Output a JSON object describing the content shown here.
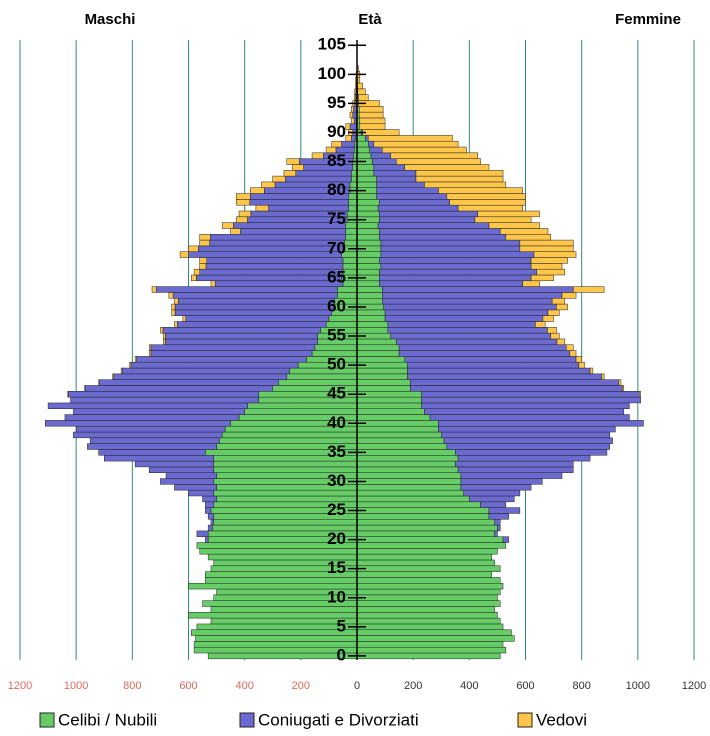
{
  "chart_data": {
    "type": "pyramid",
    "left_title": "Maschi",
    "center_title": "Età",
    "right_title": "Femmine",
    "ages": [
      0,
      1,
      2,
      3,
      4,
      5,
      6,
      7,
      8,
      9,
      10,
      11,
      12,
      13,
      14,
      15,
      16,
      17,
      18,
      19,
      20,
      21,
      22,
      23,
      24,
      25,
      26,
      27,
      28,
      29,
      30,
      31,
      32,
      33,
      34,
      35,
      36,
      37,
      38,
      39,
      40,
      41,
      42,
      43,
      44,
      45,
      46,
      47,
      48,
      49,
      50,
      51,
      52,
      53,
      54,
      55,
      56,
      57,
      58,
      59,
      60,
      61,
      62,
      63,
      64,
      65,
      66,
      67,
      68,
      69,
      70,
      71,
      72,
      73,
      74,
      75,
      76,
      77,
      78,
      79,
      80,
      81,
      82,
      83,
      84,
      85,
      86,
      87,
      88,
      89,
      90,
      91,
      92,
      93,
      94,
      95,
      96,
      97,
      98,
      99,
      100,
      101
    ],
    "xlim": [
      -1200,
      1200
    ],
    "xticks": [
      {
        "value": -1200,
        "label": "1200"
      },
      {
        "value": -1000,
        "label": "1000"
      },
      {
        "value": -800,
        "label": "800"
      },
      {
        "value": -600,
        "label": "600"
      },
      {
        "value": -400,
        "label": "400"
      },
      {
        "value": -200,
        "label": "200"
      },
      0,
      200,
      400,
      600,
      800,
      1000,
      1200
    ],
    "ylim": [
      -0.7,
      105.9
    ],
    "yticks": [
      0,
      5,
      10,
      15,
      20,
      25,
      30,
      35,
      40,
      45,
      50,
      55,
      60,
      65,
      70,
      75,
      80,
      85,
      90,
      95,
      100,
      105
    ],
    "grid": true,
    "grid_color": "#2e8b7a",
    "left_tick_color": "#e06a5a",
    "series": [
      {
        "name": "Celibi / Nubili",
        "color": "#66cc66",
        "male": [
          -530,
          -580,
          -580,
          -575,
          -590,
          -570,
          -520,
          -600,
          -520,
          -550,
          -510,
          -500,
          -600,
          -540,
          -540,
          -520,
          -510,
          -530,
          -560,
          -570,
          -530,
          -530,
          -515,
          -510,
          -510,
          -520,
          -510,
          -500,
          -510,
          -500,
          -510,
          -500,
          -510,
          -510,
          -510,
          -540,
          -500,
          -490,
          -480,
          -470,
          -450,
          -420,
          -400,
          -390,
          -350,
          -350,
          -300,
          -280,
          -250,
          -240,
          -210,
          -180,
          -160,
          -150,
          -140,
          -140,
          -130,
          -110,
          -100,
          -90,
          -80,
          -80,
          -70,
          -70,
          -50,
          -55,
          -50,
          -50,
          -50,
          -55,
          -50,
          -45,
          -40,
          -40,
          -40,
          -35,
          -35,
          -30,
          -30,
          -30,
          -25,
          -25,
          -20,
          -20,
          -15,
          -15,
          -12,
          -10,
          -8,
          -5,
          -3,
          -3,
          -2,
          -2,
          -2,
          -1,
          -1,
          -1,
          0,
          0,
          0,
          0
        ],
        "female": [
          510,
          530,
          520,
          560,
          550,
          520,
          510,
          500,
          490,
          510,
          500,
          510,
          520,
          510,
          480,
          510,
          490,
          480,
          500,
          530,
          520,
          490,
          500,
          490,
          470,
          470,
          440,
          400,
          380,
          370,
          370,
          370,
          360,
          350,
          360,
          350,
          320,
          310,
          300,
          290,
          290,
          260,
          240,
          230,
          230,
          230,
          190,
          190,
          180,
          180,
          180,
          170,
          150,
          150,
          140,
          120,
          110,
          110,
          100,
          100,
          95,
          90,
          90,
          90,
          80,
          80,
          80,
          85,
          80,
          85,
          85,
          85,
          80,
          80,
          75,
          80,
          80,
          75,
          80,
          70,
          70,
          70,
          70,
          60,
          60,
          55,
          50,
          45,
          40,
          30,
          15,
          10,
          10,
          8,
          8,
          5,
          4,
          3,
          2,
          1,
          1,
          0
        ]
      },
      {
        "name": "Coniugati e Divorziati",
        "color": "#6a6acf",
        "male": [
          0,
          0,
          0,
          0,
          0,
          0,
          0,
          0,
          0,
          0,
          0,
          0,
          0,
          0,
          0,
          0,
          0,
          0,
          0,
          0,
          -10,
          -40,
          -15,
          -10,
          -20,
          -20,
          -30,
          -50,
          -90,
          -150,
          -190,
          -180,
          -230,
          -280,
          -390,
          -380,
          -460,
          -460,
          -530,
          -530,
          -660,
          -620,
          -610,
          -710,
          -670,
          -678,
          -668,
          -637,
          -617,
          -596,
          -595,
          -605,
          -574,
          -584,
          -543,
          -542,
          -561,
          -530,
          -510,
          -558,
          -568,
          -556,
          -585,
          -645,
          -455,
          -517,
          -510,
          -488,
          -485,
          -545,
          -515,
          -480,
          -482,
          -375,
          -400,
          -355,
          -343,
          -285,
          -352,
          -350,
          -305,
          -267,
          -235,
          -198,
          -175,
          -190,
          -108,
          -65,
          -47,
          -15,
          -12,
          -22,
          -8,
          -13,
          -10,
          -7,
          -4,
          -3,
          -2,
          -2,
          -1,
          0
        ],
        "female": [
          0,
          0,
          0,
          0,
          0,
          0,
          0,
          0,
          0,
          0,
          0,
          0,
          0,
          0,
          0,
          0,
          0,
          0,
          0,
          0,
          20,
          10,
          10,
          20,
          70,
          110,
          90,
          160,
          200,
          250,
          290,
          360,
          410,
          420,
          470,
          540,
          580,
          600,
          600,
          630,
          730,
          710,
          710,
          740,
          780,
          775,
          755,
          742,
          692,
          650,
          610,
          610,
          608,
          595,
          572,
          570,
          568,
          525,
          562,
          580,
          615,
          605,
          640,
          680,
          510,
          540,
          560,
          535,
          540,
          545,
          495,
          495,
          450,
          430,
          395,
          340,
          350,
          285,
          250,
          250,
          220,
          170,
          140,
          150,
          110,
          85,
          70,
          45,
          20,
          10,
          5,
          0,
          0,
          0,
          0,
          0,
          1,
          0,
          0,
          0,
          0,
          0
        ]
      },
      {
        "name": "Vedovi",
        "color": "#ffc64a",
        "male": [
          0,
          0,
          0,
          0,
          0,
          0,
          0,
          0,
          0,
          0,
          0,
          0,
          0,
          0,
          0,
          0,
          0,
          0,
          0,
          0,
          0,
          0,
          0,
          0,
          0,
          0,
          0,
          0,
          0,
          0,
          0,
          0,
          0,
          0,
          0,
          0,
          0,
          0,
          0,
          0,
          0,
          0,
          0,
          0,
          0,
          -2,
          -2,
          -3,
          -3,
          -4,
          -5,
          -5,
          -6,
          -6,
          -7,
          -8,
          -9,
          -10,
          -10,
          -12,
          -12,
          -14,
          -15,
          -15,
          -15,
          -18,
          -20,
          -22,
          -25,
          -30,
          -35,
          -35,
          -38,
          -35,
          -40,
          -40,
          -42,
          -45,
          -48,
          -50,
          -50,
          -48,
          -45,
          -42,
          -40,
          -45,
          -40,
          -35,
          -35,
          -20,
          -15,
          -15,
          -10,
          -10,
          -8,
          -7,
          -5,
          -4,
          -3,
          -3,
          -2,
          0
        ],
        "female": [
          0,
          0,
          0,
          0,
          0,
          0,
          0,
          0,
          0,
          0,
          0,
          0,
          0,
          0,
          0,
          0,
          0,
          0,
          0,
          0,
          0,
          0,
          0,
          0,
          0,
          0,
          0,
          0,
          0,
          0,
          0,
          0,
          0,
          0,
          0,
          0,
          0,
          0,
          0,
          0,
          0,
          0,
          0,
          0,
          0,
          5,
          5,
          8,
          8,
          10,
          20,
          20,
          22,
          25,
          28,
          30,
          32,
          35,
          38,
          40,
          40,
          45,
          50,
          110,
          60,
          80,
          100,
          110,
          130,
          150,
          190,
          190,
          160,
          170,
          180,
          200,
          220,
          230,
          270,
          280,
          300,
          290,
          310,
          310,
          300,
          300,
          310,
          300,
          300,
          300,
          130,
          90,
          90,
          85,
          85,
          75,
          35,
          27,
          18,
          9,
          9,
          5
        ]
      }
    ]
  }
}
